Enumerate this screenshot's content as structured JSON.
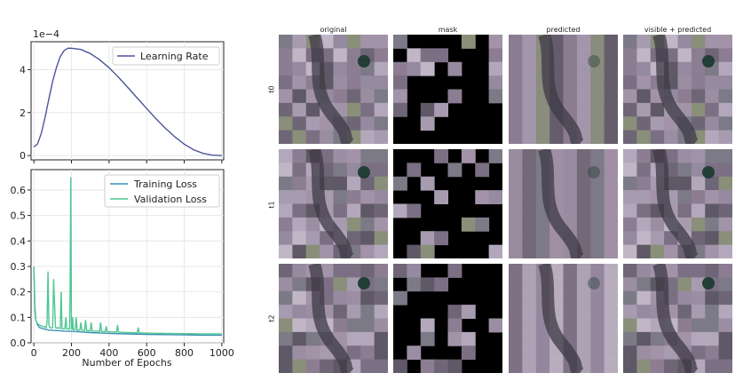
{
  "chart_data": [
    {
      "type": "line",
      "axis_exponent_label": "1e−4",
      "xlim": [
        -15,
        1010
      ],
      "ylim": [
        -0.2,
        5.3
      ],
      "yticks": [
        "0",
        "2",
        "4"
      ],
      "ytick_values": [
        0,
        2,
        4
      ],
      "legend_placement": "top-right",
      "grid": true,
      "series": [
        {
          "name": "Learning Rate",
          "color": "#4c5596",
          "x": [
            0,
            20,
            40,
            60,
            80,
            100,
            120,
            140,
            160,
            180,
            200,
            250,
            300,
            350,
            400,
            450,
            500,
            550,
            600,
            650,
            700,
            750,
            800,
            850,
            900,
            950,
            1000
          ],
          "y": [
            0.4,
            0.55,
            1.05,
            1.8,
            2.65,
            3.45,
            4.1,
            4.6,
            4.88,
            5.0,
            5.0,
            4.94,
            4.75,
            4.46,
            4.09,
            3.65,
            3.17,
            2.68,
            2.19,
            1.71,
            1.27,
            0.87,
            0.53,
            0.27,
            0.1,
            0.02,
            0.0
          ]
        }
      ]
    },
    {
      "type": "line",
      "xlim": [
        -15,
        1010
      ],
      "ylim": [
        0,
        0.68
      ],
      "xlabel": "Number of Epochs",
      "xticks": [
        "0",
        "200",
        "400",
        "600",
        "800",
        "1000"
      ],
      "xtick_values": [
        0,
        200,
        400,
        600,
        800,
        1000
      ],
      "yticks": [
        "0.0",
        "0.1",
        "0.2",
        "0.3",
        "0.4",
        "0.5",
        "0.6"
      ],
      "ytick_values": [
        0,
        0.1,
        0.2,
        0.3,
        0.4,
        0.5,
        0.6
      ],
      "legend_placement": "top-right",
      "grid": true,
      "series": [
        {
          "name": "Training Loss",
          "color": "#3a8fb5",
          "x": [
            0,
            5,
            10,
            20,
            30,
            50,
            80,
            120,
            160,
            200,
            250,
            300,
            400,
            500,
            600,
            700,
            800,
            900,
            1000
          ],
          "y": [
            0.3,
            0.15,
            0.09,
            0.07,
            0.06,
            0.055,
            0.05,
            0.048,
            0.046,
            0.045,
            0.043,
            0.04,
            0.037,
            0.035,
            0.033,
            0.032,
            0.031,
            0.03,
            0.03
          ]
        },
        {
          "name": "Validation Loss",
          "color": "#4fc792",
          "x": [
            0,
            3,
            6,
            10,
            15,
            20,
            30,
            45,
            55,
            60,
            65,
            70,
            75,
            80,
            85,
            95,
            100,
            105,
            115,
            120,
            125,
            140,
            145,
            150,
            165,
            170,
            175,
            190,
            193,
            196,
            200,
            203,
            206,
            210,
            220,
            225,
            230,
            245,
            250,
            255,
            270,
            275,
            280,
            300,
            305,
            310,
            350,
            355,
            360,
            380,
            385,
            390,
            440,
            445,
            450,
            500,
            550,
            555,
            560,
            600,
            700,
            800,
            900,
            1000
          ],
          "y": [
            0.3,
            0.2,
            0.12,
            0.09,
            0.08,
            0.075,
            0.07,
            0.065,
            0.063,
            0.062,
            0.06,
            0.08,
            0.28,
            0.07,
            0.06,
            0.058,
            0.06,
            0.25,
            0.06,
            0.057,
            0.06,
            0.056,
            0.2,
            0.055,
            0.055,
            0.1,
            0.055,
            0.054,
            0.2,
            0.65,
            0.055,
            0.054,
            0.1,
            0.052,
            0.052,
            0.1,
            0.05,
            0.05,
            0.08,
            0.05,
            0.049,
            0.09,
            0.048,
            0.047,
            0.08,
            0.046,
            0.045,
            0.08,
            0.045,
            0.044,
            0.065,
            0.044,
            0.042,
            0.07,
            0.042,
            0.04,
            0.039,
            0.06,
            0.039,
            0.038,
            0.037,
            0.036,
            0.035,
            0.035
          ]
        }
      ]
    }
  ],
  "mosaic": {
    "columns": [
      "original",
      "mask",
      "predicted",
      "visible + predicted"
    ],
    "rows": [
      "t0",
      "t1",
      "t2"
    ]
  },
  "colors": {
    "grid": "#e3e3e3",
    "axis": "#222222",
    "tile_base": "#8a7a8e",
    "mask_bg": "#000000"
  }
}
